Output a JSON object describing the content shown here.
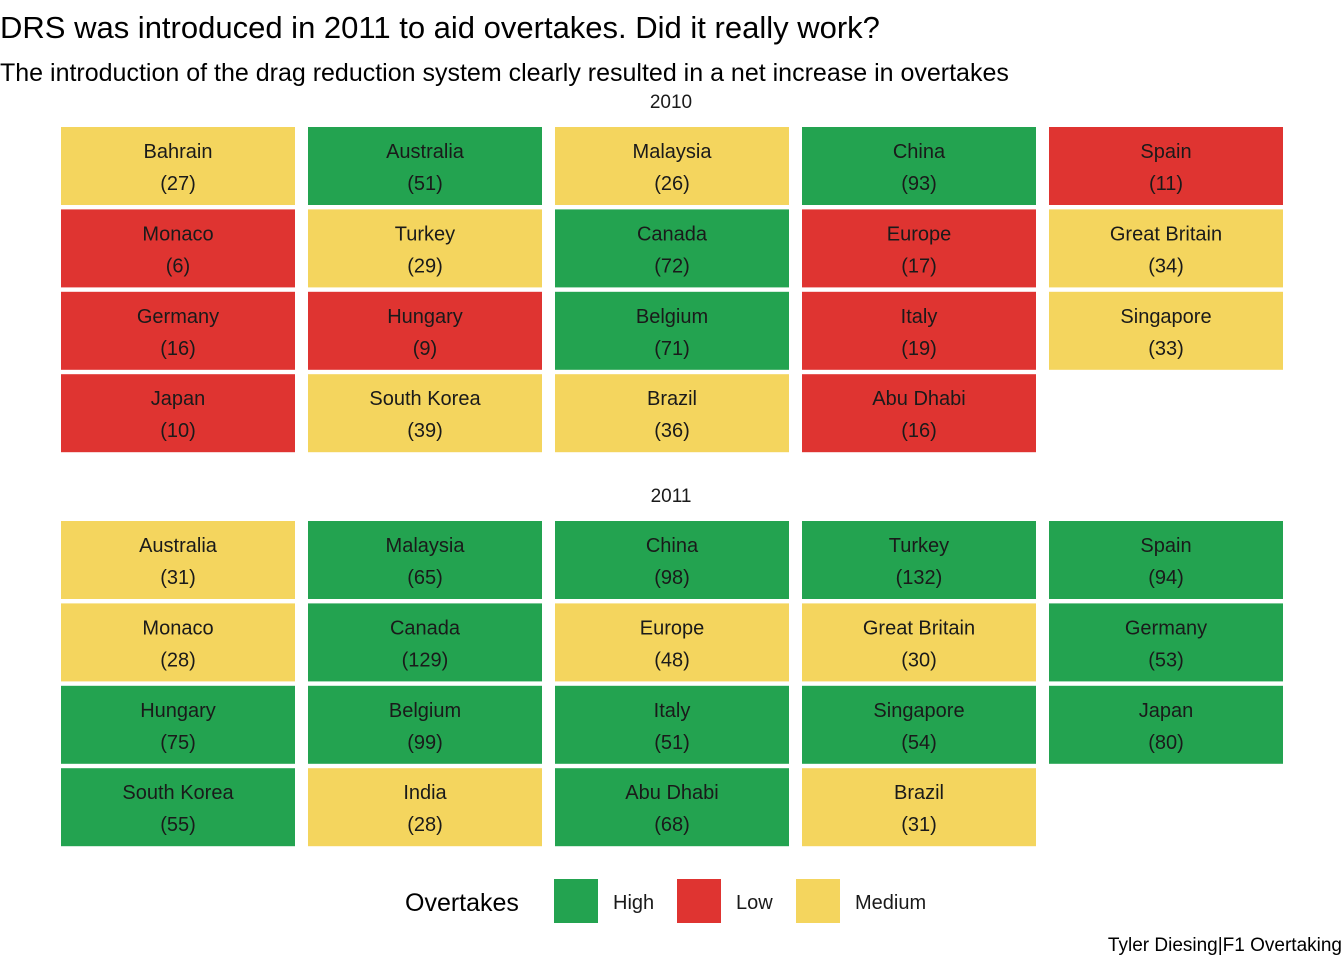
{
  "title": "DRS was introduced in 2011 to aid overtakes. Did it really work?",
  "subtitle": "The introduction of the drag reduction system clearly resulted in a net increase in overtakes",
  "caption": "Tyler Diesing|F1 Overtaking",
  "colors": {
    "High": "#23a350",
    "Low": "#df3431",
    "Medium": "#f4d55e"
  },
  "chart_data": {
    "type": "heatmap",
    "layout": "waffle tile grid, 5 columns, faceted by year",
    "facets": [
      {
        "label": "2010",
        "tiles": [
          {
            "name": "Bahrain",
            "value": 27,
            "level": "Medium"
          },
          {
            "name": "Australia",
            "value": 51,
            "level": "High"
          },
          {
            "name": "Malaysia",
            "value": 26,
            "level": "Medium"
          },
          {
            "name": "China",
            "value": 93,
            "level": "High"
          },
          {
            "name": "Spain",
            "value": 11,
            "level": "Low"
          },
          {
            "name": "Monaco",
            "value": 6,
            "level": "Low"
          },
          {
            "name": "Turkey",
            "value": 29,
            "level": "Medium"
          },
          {
            "name": "Canada",
            "value": 72,
            "level": "High"
          },
          {
            "name": "Europe",
            "value": 17,
            "level": "Low"
          },
          {
            "name": "Great Britain",
            "value": 34,
            "level": "Medium"
          },
          {
            "name": "Germany",
            "value": 16,
            "level": "Low"
          },
          {
            "name": "Hungary",
            "value": 9,
            "level": "Low"
          },
          {
            "name": "Belgium",
            "value": 71,
            "level": "High"
          },
          {
            "name": "Italy",
            "value": 19,
            "level": "Low"
          },
          {
            "name": "Singapore",
            "value": 33,
            "level": "Medium"
          },
          {
            "name": "Japan",
            "value": 10,
            "level": "Low"
          },
          {
            "name": "South Korea",
            "value": 39,
            "level": "Medium"
          },
          {
            "name": "Brazil",
            "value": 36,
            "level": "Medium"
          },
          {
            "name": "Abu Dhabi",
            "value": 16,
            "level": "Low"
          }
        ]
      },
      {
        "label": "2011",
        "tiles": [
          {
            "name": "Australia",
            "value": 31,
            "level": "Medium"
          },
          {
            "name": "Malaysia",
            "value": 65,
            "level": "High"
          },
          {
            "name": "China",
            "value": 98,
            "level": "High"
          },
          {
            "name": "Turkey",
            "value": 132,
            "level": "High"
          },
          {
            "name": "Spain",
            "value": 94,
            "level": "High"
          },
          {
            "name": "Monaco",
            "value": 28,
            "level": "Medium"
          },
          {
            "name": "Canada",
            "value": 129,
            "level": "High"
          },
          {
            "name": "Europe",
            "value": 48,
            "level": "Medium"
          },
          {
            "name": "Great Britain",
            "value": 30,
            "level": "Medium"
          },
          {
            "name": "Germany",
            "value": 53,
            "level": "High"
          },
          {
            "name": "Hungary",
            "value": 75,
            "level": "High"
          },
          {
            "name": "Belgium",
            "value": 99,
            "level": "High"
          },
          {
            "name": "Italy",
            "value": 51,
            "level": "High"
          },
          {
            "name": "Singapore",
            "value": 54,
            "level": "High"
          },
          {
            "name": "Japan",
            "value": 80,
            "level": "High"
          },
          {
            "name": "South Korea",
            "value": 55,
            "level": "High"
          },
          {
            "name": "India",
            "value": 28,
            "level": "Medium"
          },
          {
            "name": "Abu Dhabi",
            "value": 68,
            "level": "High"
          },
          {
            "name": "Brazil",
            "value": 31,
            "level": "Medium"
          }
        ]
      }
    ],
    "legend": {
      "title": "Overtakes",
      "position": "bottom",
      "entries": [
        "High",
        "Low",
        "Medium"
      ]
    },
    "grid": false
  }
}
